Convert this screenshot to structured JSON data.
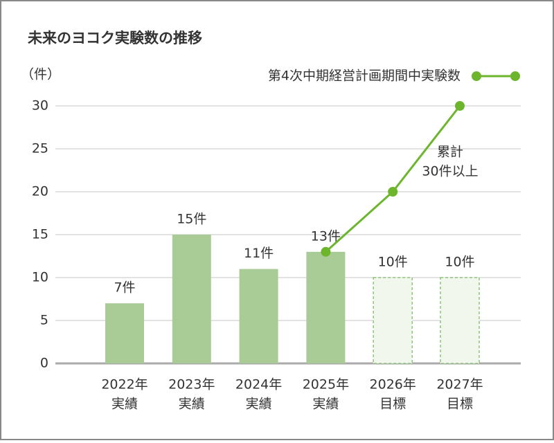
{
  "chart_data": {
    "type": "bar",
    "title": "未来のヨコク実験数の推移",
    "y_unit": "（件）",
    "categories": [
      [
        "2022年",
        "実績"
      ],
      [
        "2023年",
        "実績"
      ],
      [
        "2024年",
        "実績"
      ],
      [
        "2025年",
        "実績"
      ],
      [
        "2026年",
        "目標"
      ],
      [
        "2027年",
        "目標"
      ]
    ],
    "values": [
      7,
      15,
      11,
      13,
      10,
      10
    ],
    "value_labels": [
      "7件",
      "15件",
      "11件",
      "13件",
      "10件",
      "10件"
    ],
    "bar_colors": [
      "#a9cc96",
      "#a9cc96",
      "#a9cc96",
      "#a9cc96",
      "#f1f7ec",
      "#f1f7ec"
    ],
    "bar_dashed": [
      false,
      false,
      false,
      false,
      true,
      true
    ],
    "dash_color": "#8fc47a",
    "series": [
      {
        "name": "第4次中期経営計画期間中実験数",
        "color": "#6cb52d",
        "values": [
          null,
          null,
          null,
          13,
          20,
          30
        ]
      }
    ],
    "annotation": [
      "累計",
      "30件以上"
    ],
    "ylim": [
      0,
      30
    ],
    "yticks": [
      0,
      5,
      10,
      15,
      20,
      25,
      30
    ],
    "grid": true
  }
}
